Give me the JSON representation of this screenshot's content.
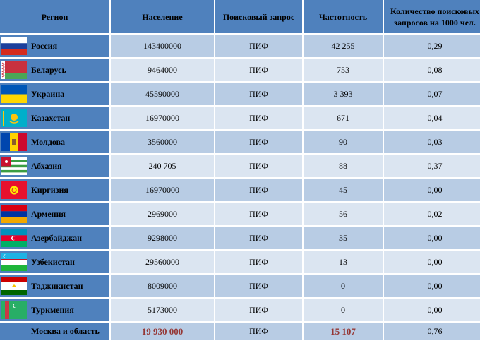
{
  "headers": {
    "region": "Регион",
    "population": "Население",
    "query": "Поисковый запрос",
    "frequency": "Частотность",
    "per1000": "Количество поисковых запросов на 1000 чел."
  },
  "rows": [
    {
      "region": "Россия",
      "flag": "russia-flag-icon",
      "population": "143400000",
      "query": "ПИФ",
      "frequency": "42 255",
      "per1000": "0,29"
    },
    {
      "region": "Беларусь",
      "flag": "belarus-flag-icon",
      "population": "9464000",
      "query": "ПИФ",
      "frequency": "753",
      "per1000": "0,08"
    },
    {
      "region": "Украина",
      "flag": "ukraine-flag-icon",
      "population": "45590000",
      "query": "ПИФ",
      "frequency": "3 393",
      "per1000": "0,07"
    },
    {
      "region": "Казахстан",
      "flag": "kazakhstan-flag-icon",
      "population": "16970000",
      "query": "ПИФ",
      "frequency": "671",
      "per1000": "0,04"
    },
    {
      "region": "Молдова",
      "flag": "moldova-flag-icon",
      "population": "3560000",
      "query": "ПИФ",
      "frequency": "90",
      "per1000": "0,03"
    },
    {
      "region": "Абхазия",
      "flag": "abkhazia-flag-icon",
      "population": "240 705",
      "query": "ПИФ",
      "frequency": "88",
      "per1000": "0,37"
    },
    {
      "region": "Киргизия",
      "flag": "kyrgyzstan-flag-icon",
      "population": "16970000",
      "query": "ПИФ",
      "frequency": "45",
      "per1000": "0,00"
    },
    {
      "region": "Армения",
      "flag": "armenia-flag-icon",
      "population": "2969000",
      "query": "ПИФ",
      "frequency": "56",
      "per1000": "0,02"
    },
    {
      "region": "Азербайджан",
      "flag": "azerbaijan-flag-icon",
      "population": "9298000",
      "query": "ПИФ",
      "frequency": "35",
      "per1000": "0,00"
    },
    {
      "region": "Узбекистан",
      "flag": "uzbekistan-flag-icon",
      "population": "29560000",
      "query": "ПИФ",
      "frequency": "13",
      "per1000": "0,00"
    },
    {
      "region": "Таджикистан",
      "flag": "tajikistan-flag-icon",
      "population": "8009000",
      "query": "ПИФ",
      "frequency": "0",
      "per1000": "0,00"
    },
    {
      "region": "Туркмения",
      "flag": "turkmenistan-flag-icon",
      "population": "5173000",
      "query": "ПИФ",
      "frequency": "0",
      "per1000": "0,00"
    }
  ],
  "total": {
    "region": "Москва и область",
    "population": "19 930 000",
    "query": "ПИФ",
    "frequency": "15 107",
    "per1000": "0,76"
  },
  "colors": {
    "header": "#4f81bd",
    "row_odd": "#b8cce4",
    "row_even": "#dbe5f1",
    "highlight": "#953735"
  }
}
